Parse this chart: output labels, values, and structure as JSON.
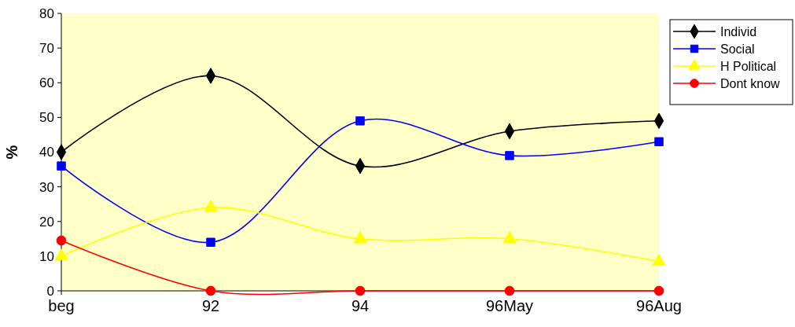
{
  "chart_data": {
    "type": "line",
    "ylabel": "%",
    "categories": [
      "beg",
      "92",
      "94",
      "96May",
      "96Aug"
    ],
    "ylim": [
      0,
      80
    ],
    "yticks": [
      0,
      10,
      20,
      30,
      40,
      50,
      60,
      70,
      80
    ],
    "grid": false,
    "legend": "top right",
    "series": [
      {
        "name": "Individ",
        "color": "#000000",
        "marker": "diamond",
        "values": [
          40,
          62,
          36,
          46,
          49
        ]
      },
      {
        "name": "Social",
        "color": "#0000ff",
        "marker": "square",
        "values": [
          36,
          14,
          49,
          39,
          43
        ]
      },
      {
        "name": "H Political",
        "color": "#ffff00",
        "marker": "triangle",
        "values": [
          10,
          24,
          15,
          15,
          8.5
        ]
      },
      {
        "name": "Dont know",
        "color": "#ff0000",
        "marker": "circle",
        "values": [
          14.5,
          0,
          0,
          0,
          0
        ]
      }
    ]
  }
}
